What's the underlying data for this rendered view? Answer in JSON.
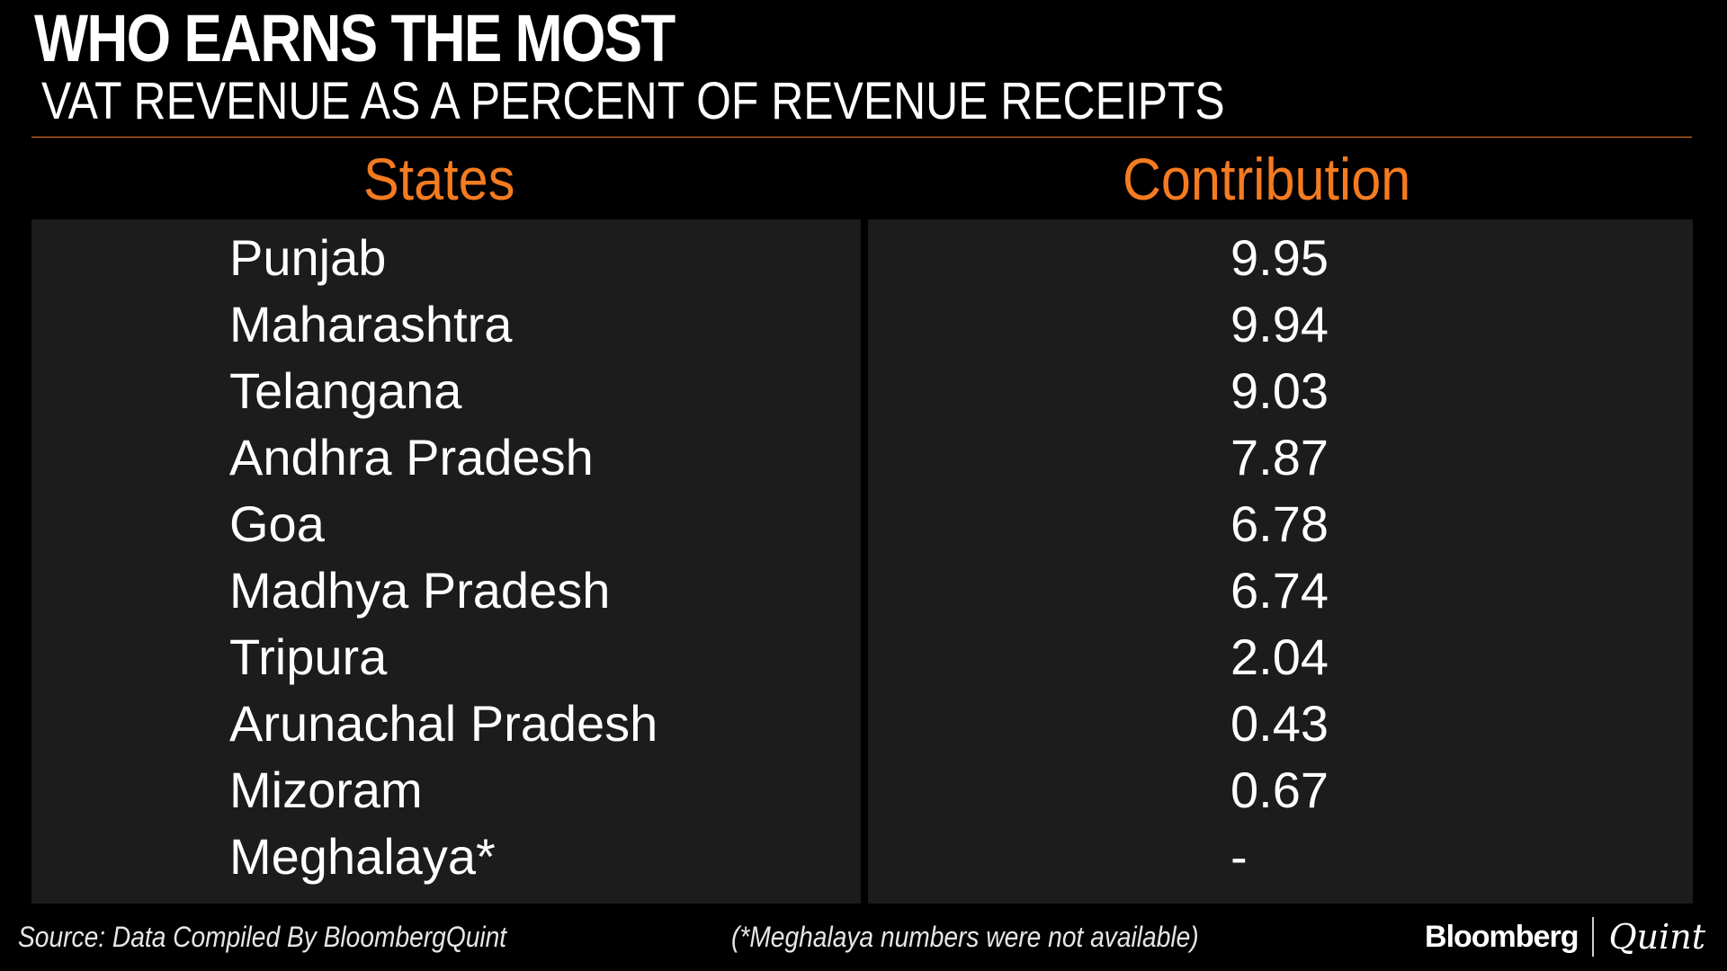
{
  "header": {
    "title": "WHO EARNS THE MOST",
    "subtitle": "VAT REVENUE AS A PERCENT OF REVENUE RECEIPTS"
  },
  "colors": {
    "accent": "#f47b20",
    "background": "#000000",
    "panel": "#1c1c1c"
  },
  "chart_data": {
    "type": "table",
    "title": "WHO EARNS THE MOST",
    "subtitle": "VAT REVENUE AS A PERCENT OF REVENUE RECEIPTS",
    "columns": [
      "States",
      "Contribution"
    ],
    "rows": [
      {
        "state": "Punjab",
        "value": "9.95"
      },
      {
        "state": "Maharashtra",
        "value": "9.94"
      },
      {
        "state": "Telangana",
        "value": "9.03"
      },
      {
        "state": "Andhra Pradesh",
        "value": "7.87"
      },
      {
        "state": "Goa",
        "value": "6.78"
      },
      {
        "state": "Madhya Pradesh",
        "value": "6.74"
      },
      {
        "state": "Tripura",
        "value": "2.04"
      },
      {
        "state": "Arunachal Pradesh",
        "value": "0.43"
      },
      {
        "state": "Mizoram",
        "value": "0.67"
      },
      {
        "state": "Meghalaya*",
        "value": "-"
      }
    ]
  },
  "footer": {
    "source": "Source: Data Compiled By BloombergQuint",
    "note": "(*Meghalaya numbers were not available)",
    "brand_left": "Bloomberg",
    "brand_right": "Quint"
  }
}
